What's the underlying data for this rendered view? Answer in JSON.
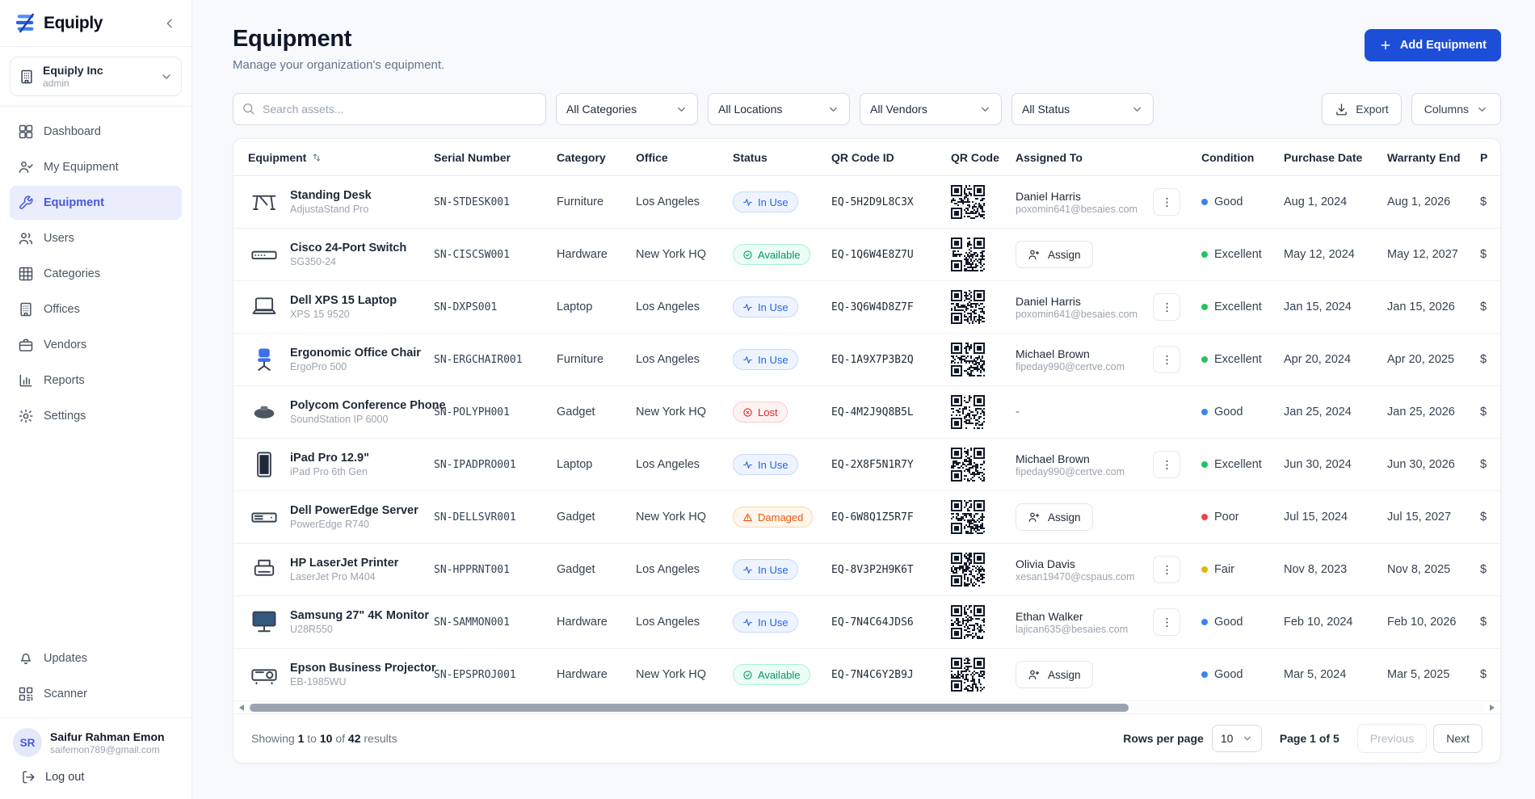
{
  "app": {
    "logo_text": "Equiply"
  },
  "sidebar": {
    "org": {
      "name": "Equiply Inc",
      "role": "admin"
    },
    "nav": [
      {
        "label": "Dashboard",
        "icon": "dashboard-icon",
        "active": false
      },
      {
        "label": "My Equipment",
        "icon": "user-check-icon",
        "active": false
      },
      {
        "label": "Equipment",
        "icon": "wrench-icon",
        "active": true
      },
      {
        "label": "Users",
        "icon": "users-icon",
        "active": false
      },
      {
        "label": "Categories",
        "icon": "grid-icon",
        "active": false
      },
      {
        "label": "Offices",
        "icon": "building-icon",
        "active": false
      },
      {
        "label": "Vendors",
        "icon": "briefcase-icon",
        "active": false
      },
      {
        "label": "Reports",
        "icon": "bar-chart-icon",
        "active": false
      },
      {
        "label": "Settings",
        "icon": "gear-icon",
        "active": false
      }
    ],
    "secondary_nav": [
      {
        "label": "Updates",
        "icon": "bell-icon"
      },
      {
        "label": "Scanner",
        "icon": "qr-scan-icon"
      }
    ],
    "user": {
      "initials": "SR",
      "name": "Saifur Rahman Emon",
      "email": "saifemon789@gmail.com"
    },
    "logout_label": "Log out"
  },
  "header": {
    "title": "Equipment",
    "subtitle": "Manage your organization's equipment.",
    "add_button_label": "Add Equipment"
  },
  "toolbar": {
    "search_placeholder": "Search assets...",
    "filters": [
      "All Categories",
      "All Locations",
      "All Vendors",
      "All Status"
    ],
    "export_label": "Export",
    "columns_label": "Columns"
  },
  "table": {
    "columns": [
      {
        "label": "Equipment",
        "sortable": true
      },
      {
        "label": "Serial Number"
      },
      {
        "label": "Category"
      },
      {
        "label": "Office"
      },
      {
        "label": "Status"
      },
      {
        "label": "QR Code ID"
      },
      {
        "label": "QR Code"
      },
      {
        "label": "Assigned To"
      },
      {
        "label": "Condition"
      },
      {
        "label": "Purchase Date"
      },
      {
        "label": "Warranty End"
      },
      {
        "label": "P"
      }
    ],
    "status_styles": {
      "in_use": {
        "label": "In Use",
        "color": "#2563eb",
        "bg": "#eef4ff",
        "border": "#c3d9fd",
        "icon": "activity-icon"
      },
      "available": {
        "label": "Available",
        "color": "#059669",
        "bg": "#ecfdf5",
        "border": "#a7f3d0",
        "icon": "check-circle-icon"
      },
      "lost": {
        "label": "Lost",
        "color": "#dc2626",
        "bg": "#fef2f2",
        "border": "#fecaca",
        "icon": "x-circle-icon"
      },
      "damaged": {
        "label": "Damaged",
        "color": "#ea580c",
        "bg": "#fff7ed",
        "border": "#fed7aa",
        "icon": "alert-triangle-icon"
      }
    },
    "condition_colors": {
      "Excellent": "#22c55e",
      "Good": "#3b82f6",
      "Fair": "#eab308",
      "Poor": "#ef4444"
    },
    "assign_button_label": "Assign",
    "unassigned_placeholder": "-",
    "rows": [
      {
        "name": "Standing Desk",
        "model": "AdjustaStand Pro",
        "thumb": "standing-desk-image",
        "serial": "SN-STDESK001",
        "category": "Furniture",
        "office": "Los Angeles",
        "status": "in_use",
        "qr_id": "EQ-5H2D9L8C3X",
        "assigned": {
          "type": "user",
          "name": "Daniel Harris",
          "email": "poxomin641@besaies.com"
        },
        "condition": "Good",
        "purchase_date": "Aug 1, 2024",
        "warranty_end": "Aug 1, 2026",
        "price_visible": "$"
      },
      {
        "name": "Cisco 24-Port Switch",
        "model": "SG350-24",
        "thumb": "network-switch-image",
        "serial": "SN-CISCSW001",
        "category": "Hardware",
        "office": "New York HQ",
        "status": "available",
        "qr_id": "EQ-1Q6W4E8Z7U",
        "assigned": {
          "type": "assign"
        },
        "condition": "Excellent",
        "purchase_date": "May 12, 2024",
        "warranty_end": "May 12, 2027",
        "price_visible": "$"
      },
      {
        "name": "Dell XPS 15 Laptop",
        "model": "XPS 15 9520",
        "thumb": "laptop-image",
        "serial": "SN-DXPS001",
        "category": "Laptop",
        "office": "Los Angeles",
        "status": "in_use",
        "qr_id": "EQ-3Q6W4D8Z7F",
        "assigned": {
          "type": "user",
          "name": "Daniel Harris",
          "email": "poxomin641@besaies.com"
        },
        "condition": "Excellent",
        "purchase_date": "Jan 15, 2024",
        "warranty_end": "Jan 15, 2026",
        "price_visible": "$"
      },
      {
        "name": "Ergonomic Office Chair",
        "model": "ErgoPro 500",
        "thumb": "office-chair-image",
        "serial": "SN-ERGCHAIR001",
        "category": "Furniture",
        "office": "Los Angeles",
        "status": "in_use",
        "qr_id": "EQ-1A9X7P3B2Q",
        "assigned": {
          "type": "user",
          "name": "Michael Brown",
          "email": "fipeday990@certve.com"
        },
        "condition": "Excellent",
        "purchase_date": "Apr 20, 2024",
        "warranty_end": "Apr 20, 2025",
        "price_visible": "$"
      },
      {
        "name": "Polycom Conference Phone",
        "model": "SoundStation IP 6000",
        "thumb": "conference-phone-image",
        "serial": "SN-POLYPH001",
        "category": "Gadget",
        "office": "New York HQ",
        "status": "lost",
        "qr_id": "EQ-4M2J9Q8B5L",
        "assigned": {
          "type": "none"
        },
        "condition": "Good",
        "purchase_date": "Jan 25, 2024",
        "warranty_end": "Jan 25, 2026",
        "price_visible": "$"
      },
      {
        "name": "iPad Pro 12.9\"",
        "model": "iPad Pro 6th Gen",
        "thumb": "tablet-image",
        "serial": "SN-IPADPRO001",
        "category": "Laptop",
        "office": "Los Angeles",
        "status": "in_use",
        "qr_id": "EQ-2X8F5N1R7Y",
        "assigned": {
          "type": "user",
          "name": "Michael Brown",
          "email": "fipeday990@certve.com"
        },
        "condition": "Excellent",
        "purchase_date": "Jun 30, 2024",
        "warranty_end": "Jun 30, 2026",
        "price_visible": "$"
      },
      {
        "name": "Dell PowerEdge Server",
        "model": "PowerEdge R740",
        "thumb": "server-image",
        "serial": "SN-DELLSVR001",
        "category": "Gadget",
        "office": "New York HQ",
        "status": "damaged",
        "qr_id": "EQ-6W8Q1Z5R7F",
        "assigned": {
          "type": "assign"
        },
        "condition": "Poor",
        "purchase_date": "Jul 15, 2024",
        "warranty_end": "Jul 15, 2027",
        "price_visible": "$"
      },
      {
        "name": "HP LaserJet Printer",
        "model": "LaserJet Pro M404",
        "thumb": "printer-image",
        "serial": "SN-HPPRNT001",
        "category": "Gadget",
        "office": "Los Angeles",
        "status": "in_use",
        "qr_id": "EQ-8V3P2H9K6T",
        "assigned": {
          "type": "user",
          "name": "Olivia Davis",
          "email": "xesan19470@cspaus.com"
        },
        "condition": "Fair",
        "purchase_date": "Nov 8, 2023",
        "warranty_end": "Nov 8, 2025",
        "price_visible": "$"
      },
      {
        "name": "Samsung 27\" 4K Monitor",
        "model": "U28R550",
        "thumb": "monitor-image",
        "serial": "SN-SAMMON001",
        "category": "Hardware",
        "office": "Los Angeles",
        "status": "in_use",
        "qr_id": "EQ-7N4C64JDS6",
        "assigned": {
          "type": "user",
          "name": "Ethan Walker",
          "email": "lajican635@besaies.com"
        },
        "condition": "Good",
        "purchase_date": "Feb 10, 2024",
        "warranty_end": "Feb 10, 2026",
        "price_visible": "$"
      },
      {
        "name": "Epson Business Projector",
        "model": "EB-1985WU",
        "thumb": "projector-image",
        "serial": "SN-EPSPROJ001",
        "category": "Hardware",
        "office": "New York HQ",
        "status": "available",
        "qr_id": "EQ-7N4C6Y2B9J",
        "assigned": {
          "type": "assign"
        },
        "condition": "Good",
        "purchase_date": "Mar 5, 2024",
        "warranty_end": "Mar 5, 2025",
        "price_visible": "$"
      }
    ]
  },
  "pagination": {
    "showing": {
      "prefix": "Showing",
      "from": "1",
      "to_word": "to",
      "to": "10",
      "of_word": "of",
      "total": "42",
      "suffix": "results"
    },
    "rows_per_page_label": "Rows per page",
    "rows_per_page_value": "10",
    "page_label": "Page 1 of 5",
    "previous_label": "Previous",
    "next_label": "Next"
  }
}
